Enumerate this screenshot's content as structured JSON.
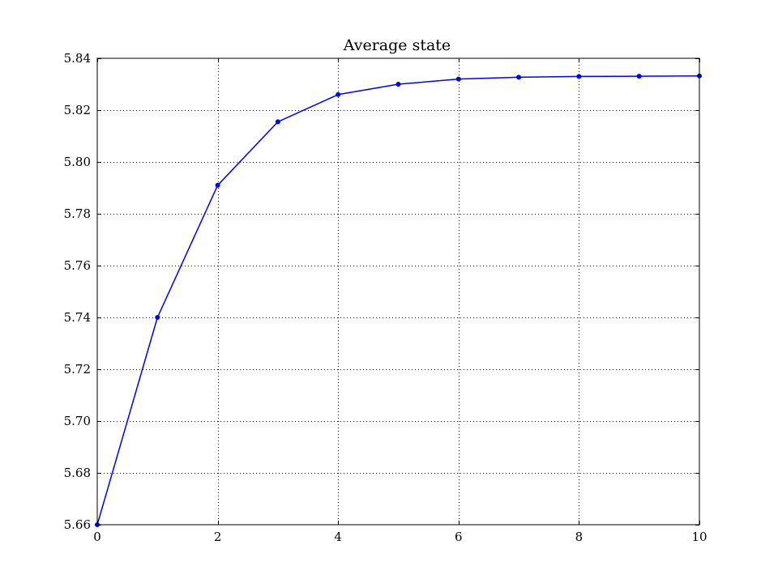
{
  "chart_data": {
    "type": "line",
    "title": "Average state",
    "xlabel": "",
    "ylabel": "",
    "xlim": [
      0,
      10
    ],
    "ylim": [
      5.66,
      5.84
    ],
    "x_ticks": [
      0,
      2,
      4,
      6,
      8,
      10
    ],
    "x_tick_labels": [
      "0",
      "2",
      "4",
      "6",
      "8",
      "10"
    ],
    "y_ticks": [
      5.66,
      5.68,
      5.7,
      5.72,
      5.74,
      5.76,
      5.78,
      5.8,
      5.82,
      5.84
    ],
    "y_tick_labels": [
      "5.66",
      "5.68",
      "5.70",
      "5.72",
      "5.74",
      "5.76",
      "5.78",
      "5.80",
      "5.82",
      "5.84"
    ],
    "grid": true,
    "legend": "none",
    "series": [
      {
        "color": "#0000ff",
        "marker": "dot",
        "x": [
          0,
          1,
          2,
          3,
          4,
          5,
          6,
          7,
          8,
          9,
          10
        ],
        "y": [
          5.66,
          5.74,
          5.791,
          5.8155,
          5.826,
          5.83,
          5.832,
          5.8327,
          5.833,
          5.8331,
          5.8332
        ]
      }
    ]
  }
}
